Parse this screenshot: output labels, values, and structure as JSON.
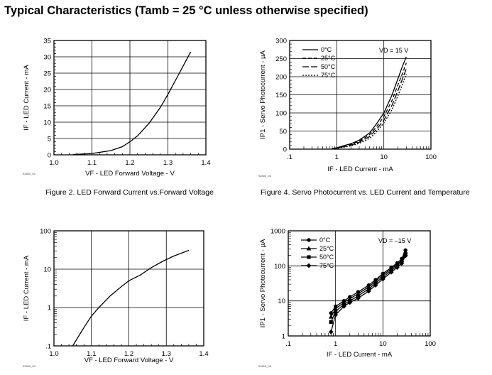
{
  "page_title": "Typical Characteristics (Tamb = 25 °C unless otherwise specified)",
  "captions": {
    "fig2": "Figure 2. LED Forward Current vs.Forward Voltage",
    "fig4": "Figure 4. Servo Photocurrent vs. LED Current and Temperature"
  },
  "chart_data": [
    {
      "id": "chart-tl",
      "type": "line",
      "title": "",
      "xlabel": "VF - LED  Forward Voltage - V",
      "ylabel": "IF - LED Current - mA",
      "x_scale": "linear",
      "y_scale": "linear",
      "xlim": [
        1.0,
        1.4
      ],
      "ylim": [
        0,
        35
      ],
      "xticks": [
        1.0,
        1.1,
        1.2,
        1.3,
        1.4
      ],
      "xtick_labels": [
        "1.0",
        "1.1",
        "1.2",
        "1.3",
        "1.4"
      ],
      "yticks": [
        0,
        5,
        10,
        15,
        20,
        25,
        30,
        35
      ],
      "ytick_labels": [
        "0",
        "5",
        "10",
        "15",
        "20",
        "25",
        "30",
        "35"
      ],
      "grid": true,
      "tag": "92800_02",
      "series": [
        {
          "x": [
            1.05,
            1.1,
            1.15,
            1.18,
            1.2,
            1.22,
            1.25,
            1.28,
            1.3,
            1.33,
            1.36
          ],
          "y": [
            0.1,
            0.4,
            1.3,
            2.5,
            4,
            5.8,
            9.6,
            14.5,
            18.5,
            25,
            31.5
          ]
        }
      ]
    },
    {
      "id": "chart-tr",
      "type": "line",
      "title": "",
      "xlabel": "IF - LED Current - mA",
      "ylabel": "IP1 - Servo Photocurrent - µA",
      "x_scale": "log",
      "y_scale": "linear",
      "xlim": [
        0.1,
        100
      ],
      "ylim": [
        0,
        300
      ],
      "xtick_labels": [
        ".1",
        "1",
        "10",
        "100"
      ],
      "yticks": [
        0,
        50,
        100,
        150,
        200,
        250,
        300
      ],
      "ytick_labels": [
        "0",
        "50",
        "100",
        "150",
        "200",
        "250",
        "300"
      ],
      "grid": true,
      "annotation": "VD = 15 V",
      "legend_position": "top-left",
      "tag": "92800_04",
      "series": [
        {
          "name": "0°C",
          "style": "solid",
          "x": [
            0.8,
            1,
            2,
            3,
            5,
            7,
            10,
            15,
            20,
            25,
            30
          ],
          "y": [
            2,
            4,
            15,
            25,
            45,
            70,
            100,
            150,
            195,
            230,
            255
          ]
        },
        {
          "name": "25°C",
          "style": "dashed",
          "x": [
            0.8,
            1,
            2,
            3,
            5,
            7,
            10,
            15,
            20,
            25,
            30
          ],
          "y": [
            1.5,
            3,
            13,
            22,
            40,
            62,
            90,
            135,
            178,
            210,
            238
          ]
        },
        {
          "name": "50°C",
          "style": "longdash",
          "x": [
            0.8,
            1,
            2,
            3,
            5,
            7,
            10,
            15,
            20,
            25,
            30
          ],
          "y": [
            1,
            2.5,
            11,
            19,
            35,
            55,
            80,
            122,
            162,
            195,
            222
          ]
        },
        {
          "name": "75°C",
          "style": "dotted",
          "x": [
            0.8,
            1,
            2,
            3,
            5,
            7,
            10,
            15,
            20,
            25,
            30
          ],
          "y": [
            0.8,
            2,
            9,
            16,
            30,
            48,
            72,
            110,
            148,
            180,
            208
          ]
        }
      ]
    },
    {
      "id": "chart-bl",
      "type": "line",
      "title": "",
      "xlabel": "VF - LED  Forward  Voltage - V",
      "ylabel": "IF - LED Current - mA",
      "x_scale": "linear",
      "y_scale": "log",
      "xlim": [
        1.0,
        1.4
      ],
      "ylim": [
        0.1,
        100
      ],
      "xticks": [
        1.0,
        1.1,
        1.2,
        1.3,
        1.4
      ],
      "xtick_labels": [
        "1.0",
        "1.1",
        "1.2",
        "1.3",
        "1.4"
      ],
      "ytick_labels": [
        ".1",
        "1",
        "10",
        "100"
      ],
      "grid": true,
      "tag": "92800_03",
      "series": [
        {
          "x": [
            1.05,
            1.08,
            1.1,
            1.12,
            1.15,
            1.18,
            1.2,
            1.23,
            1.26,
            1.29,
            1.32,
            1.36
          ],
          "y": [
            0.1,
            0.3,
            0.6,
            1,
            2,
            3.5,
            5,
            7,
            11,
            16,
            22,
            31
          ]
        }
      ]
    },
    {
      "id": "chart-br",
      "type": "line",
      "title": "",
      "xlabel": "IF - LED Current - mA",
      "ylabel": "IP1 - Servo Photocurrent - µA",
      "x_scale": "log",
      "y_scale": "log",
      "xlim": [
        0.1,
        100
      ],
      "ylim": [
        1,
        1000
      ],
      "xtick_labels": [
        ".1",
        "1",
        "10",
        "100"
      ],
      "ytick_labels": [
        "1",
        "10",
        "100",
        "1000"
      ],
      "grid": true,
      "annotation": "VD = –15 V",
      "legend_position": "top-left",
      "tag": "92800_05",
      "series": [
        {
          "name": "0°C",
          "marker": "circle",
          "x": [
            0.8,
            1,
            1.5,
            2,
            3,
            5,
            7,
            10,
            15,
            20,
            25,
            30
          ],
          "y": [
            4.5,
            7,
            10,
            13,
            18,
            28,
            40,
            60,
            90,
            120,
            160,
            280
          ]
        },
        {
          "name": "25°C",
          "marker": "triangle",
          "x": [
            0.8,
            1,
            1.5,
            2,
            3,
            5,
            7,
            10,
            15,
            20,
            25,
            30
          ],
          "y": [
            3.5,
            6,
            9,
            11.5,
            16,
            25,
            36,
            54,
            82,
            110,
            145,
            250
          ]
        },
        {
          "name": "50°C",
          "marker": "square",
          "x": [
            0.8,
            1,
            1.5,
            2,
            3,
            5,
            7,
            10,
            15,
            20,
            25,
            30
          ],
          "y": [
            2.5,
            5,
            8,
            10,
            14,
            22,
            32,
            48,
            74,
            100,
            130,
            220
          ]
        },
        {
          "name": "75°C",
          "marker": "diamond",
          "x": [
            0.8,
            1,
            1.5,
            2,
            3,
            5,
            7,
            10,
            15,
            20,
            25,
            30
          ],
          "y": [
            1.3,
            4,
            7,
            9,
            12,
            19,
            28,
            42,
            66,
            90,
            118,
            195
          ]
        }
      ]
    }
  ]
}
